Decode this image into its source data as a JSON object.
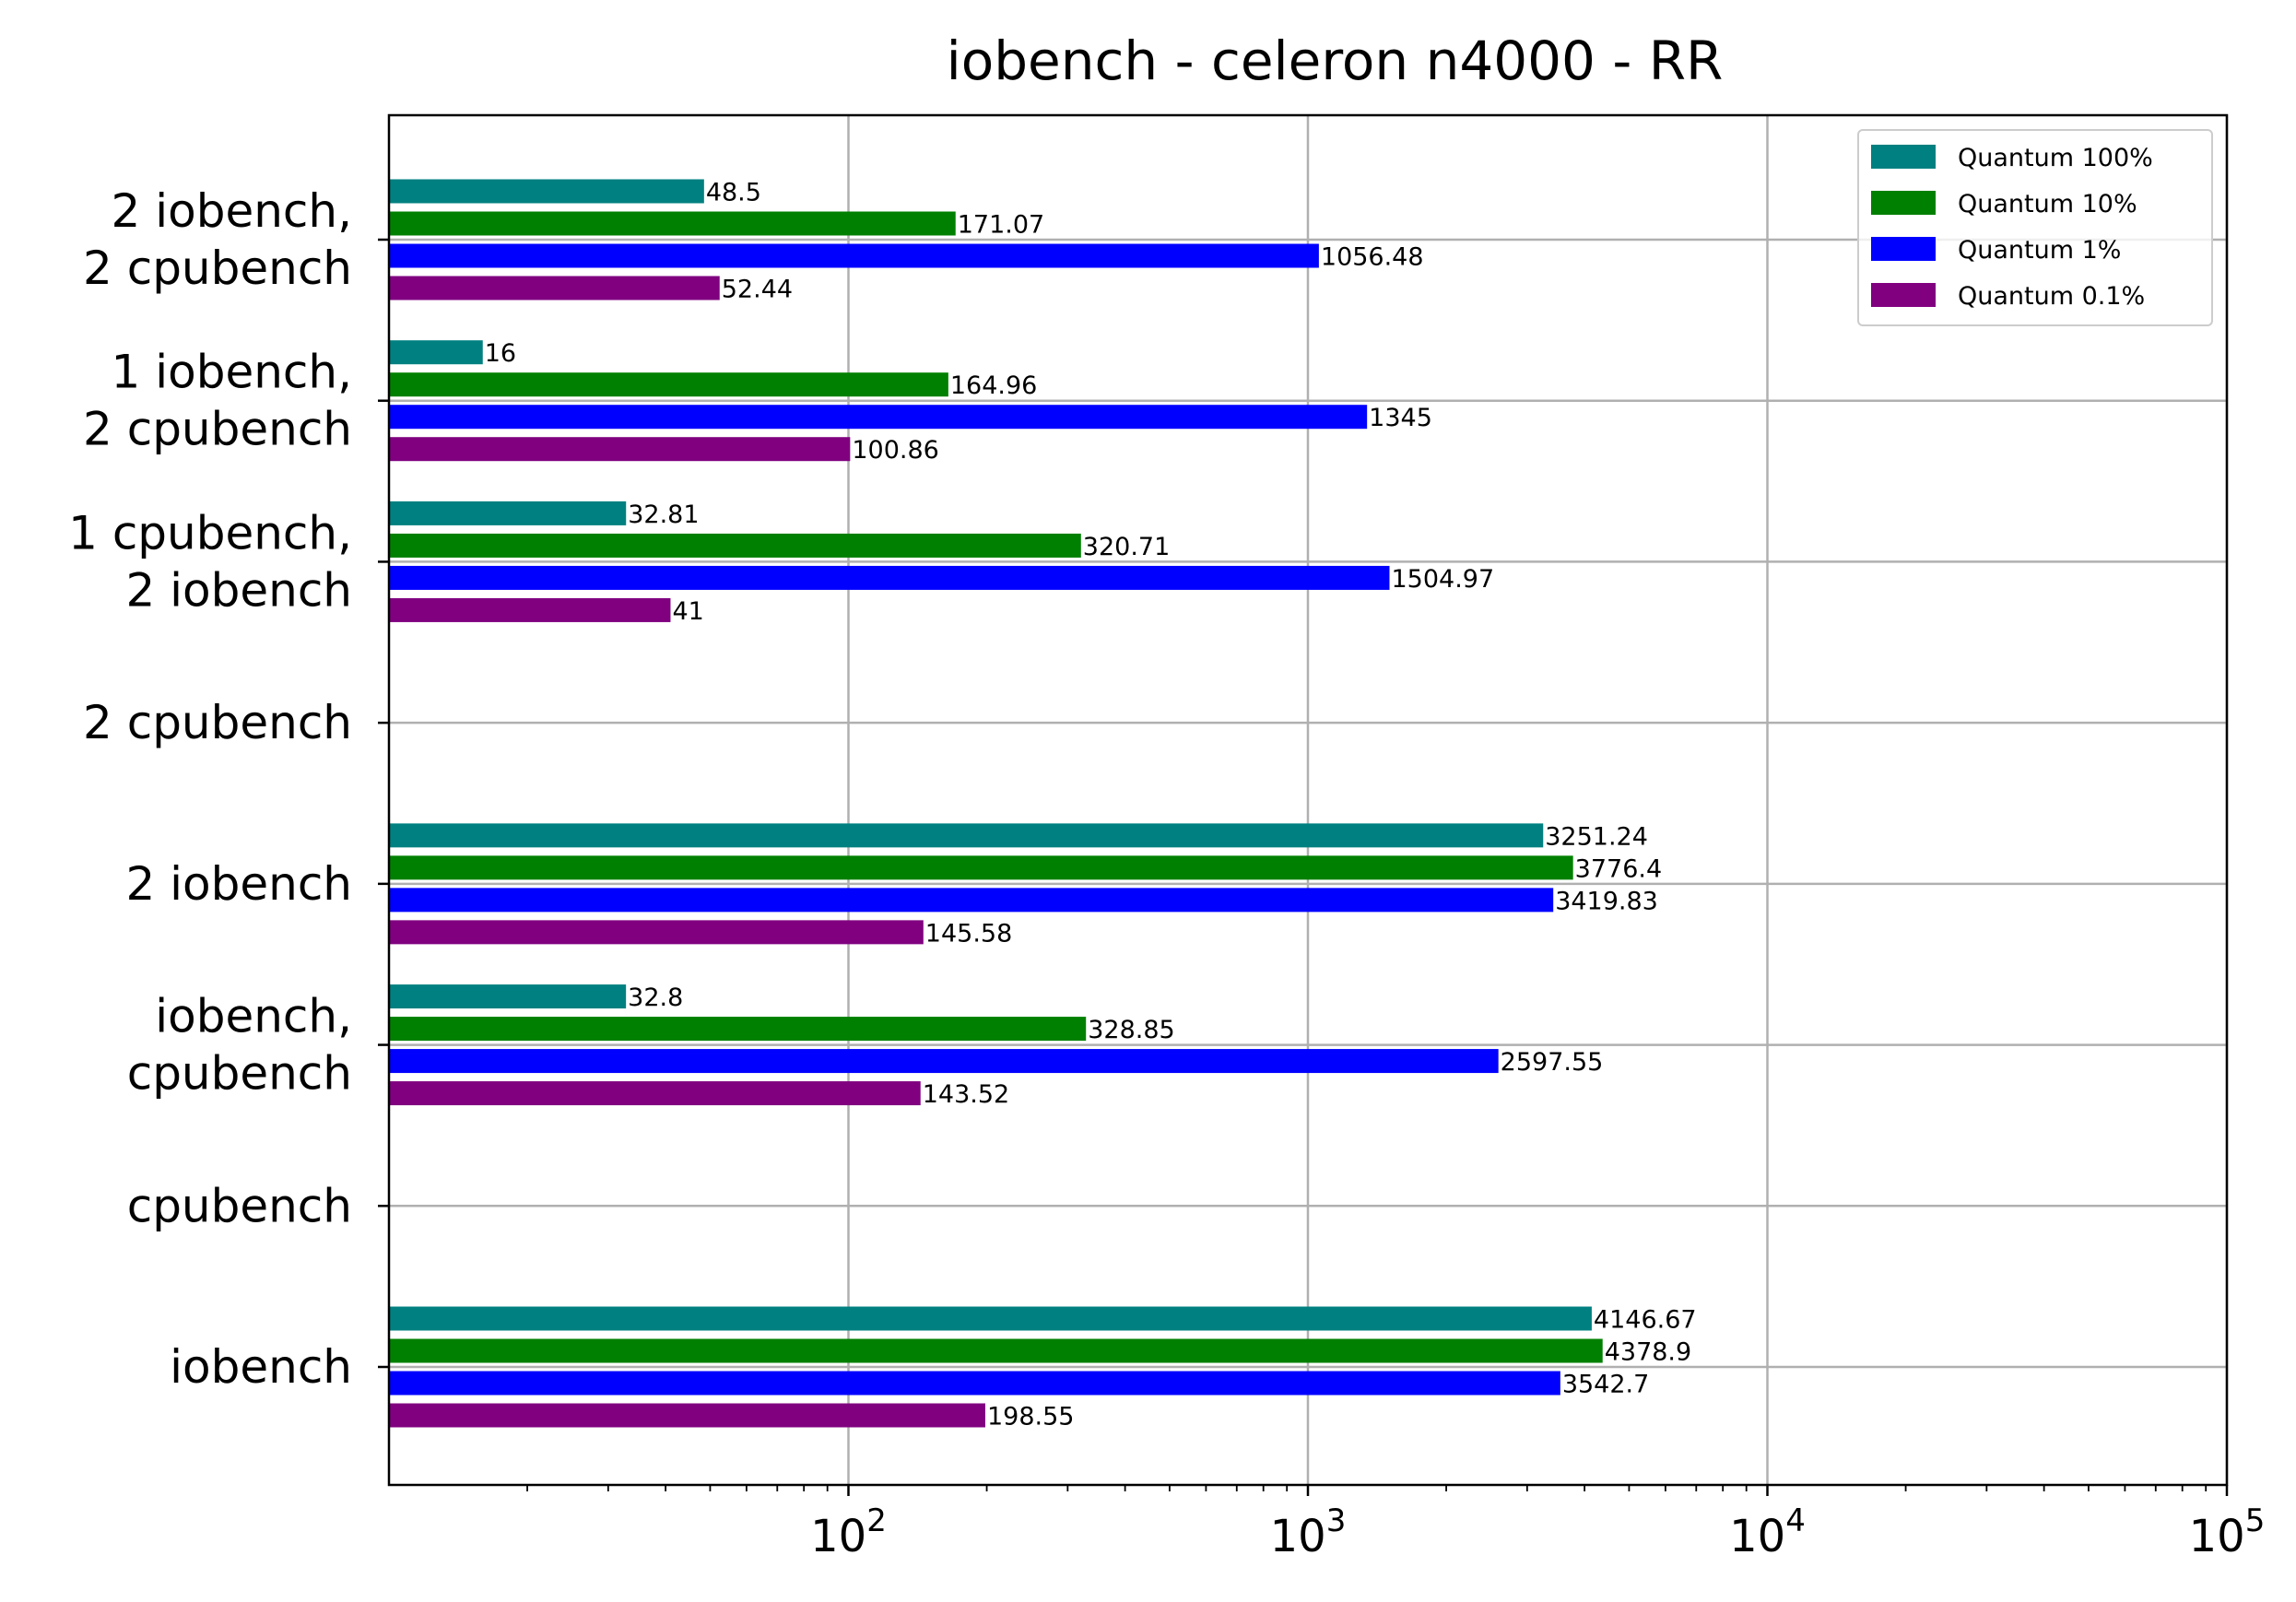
{
  "chart_data": {
    "type": "bar",
    "orientation": "horizontal",
    "title": "iobench - celeron n4000 - RR",
    "xscale": "log",
    "xlim": [
      10,
      100000
    ],
    "xticks": [
      {
        "value": 100,
        "base": "10",
        "exp": "2"
      },
      {
        "value": 1000,
        "base": "10",
        "exp": "3"
      },
      {
        "value": 10000,
        "base": "10",
        "exp": "4"
      },
      {
        "value": 100000,
        "base": "10",
        "exp": "5"
      }
    ],
    "grid": true,
    "legend_position": "top-right",
    "categories": [
      [
        "2 iobench,",
        "2 cpubench"
      ],
      [
        "1 iobench,",
        "2 cpubench"
      ],
      [
        "1 cpubench,",
        "2 iobench"
      ],
      [
        "2 cpubench"
      ],
      [
        "2 iobench"
      ],
      [
        "iobench,",
        "cpubench"
      ],
      [
        "cpubench"
      ],
      [
        "iobench"
      ]
    ],
    "series": [
      {
        "name": "Quantum 100%",
        "color": "#008080",
        "values": [
          48.5,
          16,
          32.81,
          null,
          3251.24,
          32.8,
          null,
          4146.67
        ]
      },
      {
        "name": "Quantum 10%",
        "color": "#008000",
        "values": [
          171.07,
          164.96,
          320.71,
          null,
          3776.4,
          328.85,
          null,
          4378.9
        ]
      },
      {
        "name": "Quantum 1%",
        "color": "#0000ff",
        "values": [
          1056.48,
          1345,
          1504.97,
          null,
          3419.83,
          2597.55,
          null,
          3542.7
        ]
      },
      {
        "name": "Quantum 0.1%",
        "color": "#800080",
        "values": [
          52.44,
          100.86,
          41,
          null,
          145.58,
          143.52,
          null,
          198.55
        ]
      }
    ]
  }
}
